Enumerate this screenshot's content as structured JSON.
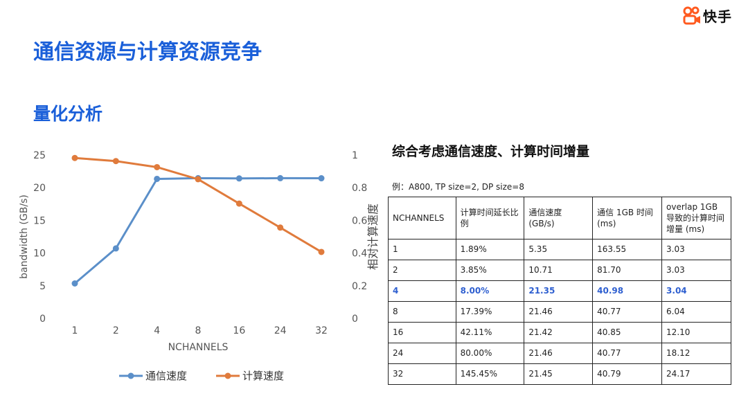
{
  "brand": {
    "name": "快手"
  },
  "title": "通信资源与计算资源竞争",
  "subtitle": "量化分析",
  "chart_data": {
    "type": "line",
    "categories": [
      "1",
      "2",
      "4",
      "8",
      "16",
      "24",
      "32"
    ],
    "xlabel": "NCHANNELS",
    "ylabel": "bandwidth (GB/s)",
    "y2label": "相对计算速度",
    "ylim": [
      0,
      25
    ],
    "y2lim": [
      0,
      1
    ],
    "yticks": [
      "0",
      "5",
      "10",
      "15",
      "20",
      "25"
    ],
    "y2ticks": [
      "0",
      "0.2",
      "0.4",
      "0.6",
      "0.8",
      "1"
    ],
    "grid": false,
    "legend_position": "bottom",
    "series": [
      {
        "name": "通信速度",
        "axis": "left",
        "color": "#5b8fc9",
        "values": [
          5.35,
          10.71,
          21.35,
          21.46,
          21.42,
          21.46,
          21.45
        ]
      },
      {
        "name": "计算速度",
        "axis": "right",
        "color": "#e07b3c",
        "values": [
          0.982,
          0.963,
          0.926,
          0.852,
          0.703,
          0.556,
          0.407
        ]
      }
    ]
  },
  "table": {
    "title": "综合考虑通信速度、计算时间增量",
    "note": "例：A800, TP size=2, DP size=8",
    "headers": [
      "NCHANNELS",
      "计算时间延长比例",
      "通信速度 (GB/s)",
      "通信 1GB 时间 (ms)",
      "overlap 1GB 导致的计算时间增量 (ms)"
    ],
    "highlight_row": 2,
    "rows": [
      [
        "1",
        "1.89%",
        "5.35",
        "163.55",
        "3.03"
      ],
      [
        "2",
        "3.85%",
        "10.71",
        "81.70",
        "3.03"
      ],
      [
        "4",
        "8.00%",
        "21.35",
        "40.98",
        "3.04"
      ],
      [
        "8",
        "17.39%",
        "21.46",
        "40.77",
        "6.04"
      ],
      [
        "16",
        "42.11%",
        "21.42",
        "40.85",
        "12.10"
      ],
      [
        "24",
        "80.00%",
        "21.46",
        "40.77",
        "18.12"
      ],
      [
        "32",
        "145.45%",
        "21.45",
        "40.79",
        "24.17"
      ]
    ]
  }
}
